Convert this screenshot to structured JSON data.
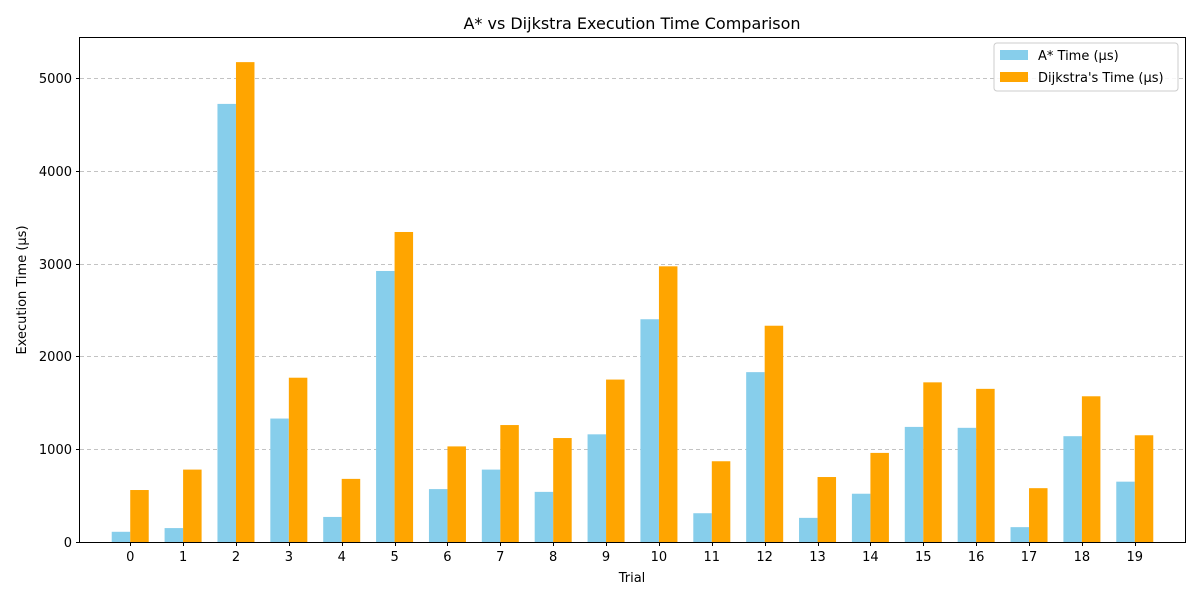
{
  "chart_data": {
    "type": "bar",
    "title": "A* vs Dijkstra Execution Time Comparison",
    "xlabel": "Trial",
    "ylabel": "Execution Time (µs)",
    "categories": [
      "0",
      "1",
      "2",
      "3",
      "4",
      "5",
      "6",
      "7",
      "8",
      "9",
      "10",
      "11",
      "12",
      "13",
      "14",
      "15",
      "16",
      "17",
      "18",
      "19"
    ],
    "series": [
      {
        "name": "A* Time (µs)",
        "color": "#87ceeb",
        "values": [
          110,
          150,
          4720,
          1330,
          270,
          2920,
          570,
          780,
          540,
          1160,
          2400,
          310,
          1830,
          260,
          520,
          1240,
          1230,
          160,
          1140,
          650
        ]
      },
      {
        "name": "Dijkstra's Time (µs)",
        "color": "#ffa500",
        "values": [
          560,
          780,
          5170,
          1770,
          680,
          3340,
          1030,
          1260,
          1120,
          1750,
          2970,
          870,
          2330,
          700,
          960,
          1720,
          1650,
          580,
          1570,
          1150
        ]
      }
    ],
    "ylim": [
      0,
      5430
    ],
    "yticks": [
      "0",
      "1000",
      "2000",
      "3000",
      "4000",
      "5000"
    ],
    "grid": "y-dashed",
    "legend_position": "top-right"
  }
}
